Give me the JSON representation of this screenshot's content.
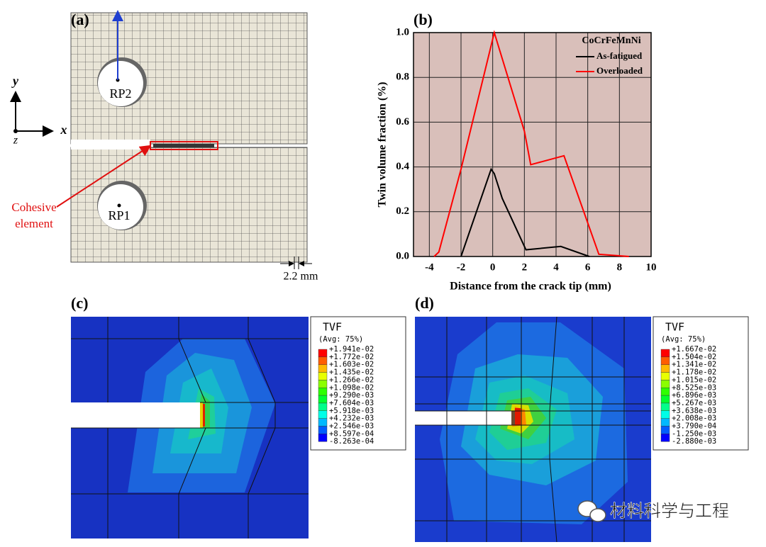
{
  "chart_data": {
    "type": "line",
    "panel_label": "(b)",
    "xlabel": "Distance from the crack tip (mm)",
    "ylabel": "Twin volume fraction (%)",
    "legend_title": "CoCrFeMnNi",
    "legend": "upper right",
    "background": "#d9bfba",
    "grid": true,
    "xlim": [
      -5,
      10
    ],
    "ylim": [
      0,
      1
    ],
    "xticks": [
      -4,
      -2,
      0,
      2,
      4,
      6,
      8,
      10
    ],
    "yticks": [
      {
        "value": 0,
        "label": "0.0"
      },
      0.2,
      0.4,
      0.6,
      0.8,
      {
        "value": 1,
        "label": "1.0"
      }
    ],
    "series": [
      {
        "name": "As-fatigued",
        "color": "#000000",
        "x": [
          -2,
          -0.1,
          0.1,
          0.6,
          2.1,
          4.3,
          6.1
        ],
        "values": [
          0,
          0.39,
          0.37,
          0.26,
          0.03,
          0.045,
          0
        ]
      },
      {
        "name": "Overloaded",
        "color": "#ff0000",
        "x": [
          -3.7,
          -3.4,
          -2,
          0.1,
          2,
          2.4,
          4.5,
          6.7,
          8.6
        ],
        "values": [
          0,
          0.02,
          0.39,
          1.0,
          0.56,
          0.41,
          0.45,
          0.01,
          0
        ]
      }
    ]
  },
  "panel_a": {
    "label": "(a)",
    "axis_y": "y",
    "axis_x": "x",
    "axis_z": "z",
    "rp2": "RP2",
    "rp1": "RP1",
    "annotation": [
      "Cohesive",
      "element"
    ],
    "scale": "2.2 mm"
  },
  "panel_c": {
    "label": "(c)",
    "legend_title": "TVF",
    "legend_subtitle": "(Avg: 75%)",
    "legend_values": [
      "+1.941e-02",
      "+1.772e-02",
      "+1.603e-02",
      "+1.435e-02",
      "+1.266e-02",
      "+1.098e-02",
      "+9.290e-03",
      "+7.604e-03",
      "+5.918e-03",
      "+4.232e-03",
      "+2.546e-03",
      "+8.597e-04",
      "-8.263e-04"
    ]
  },
  "panel_d": {
    "label": "(d)",
    "legend_title": "TVF",
    "legend_subtitle": "(Avg: 75%)",
    "legend_values": [
      "+1.667e-02",
      "+1.504e-02",
      "+1.341e-02",
      "+1.178e-02",
      "+1.015e-02",
      "+8.525e-03",
      "+6.896e-03",
      "+5.267e-03",
      "+3.638e-03",
      "+2.008e-03",
      "+3.790e-04",
      "-1.250e-03",
      "-2.880e-03"
    ]
  },
  "watermark": "材料科学与工程"
}
